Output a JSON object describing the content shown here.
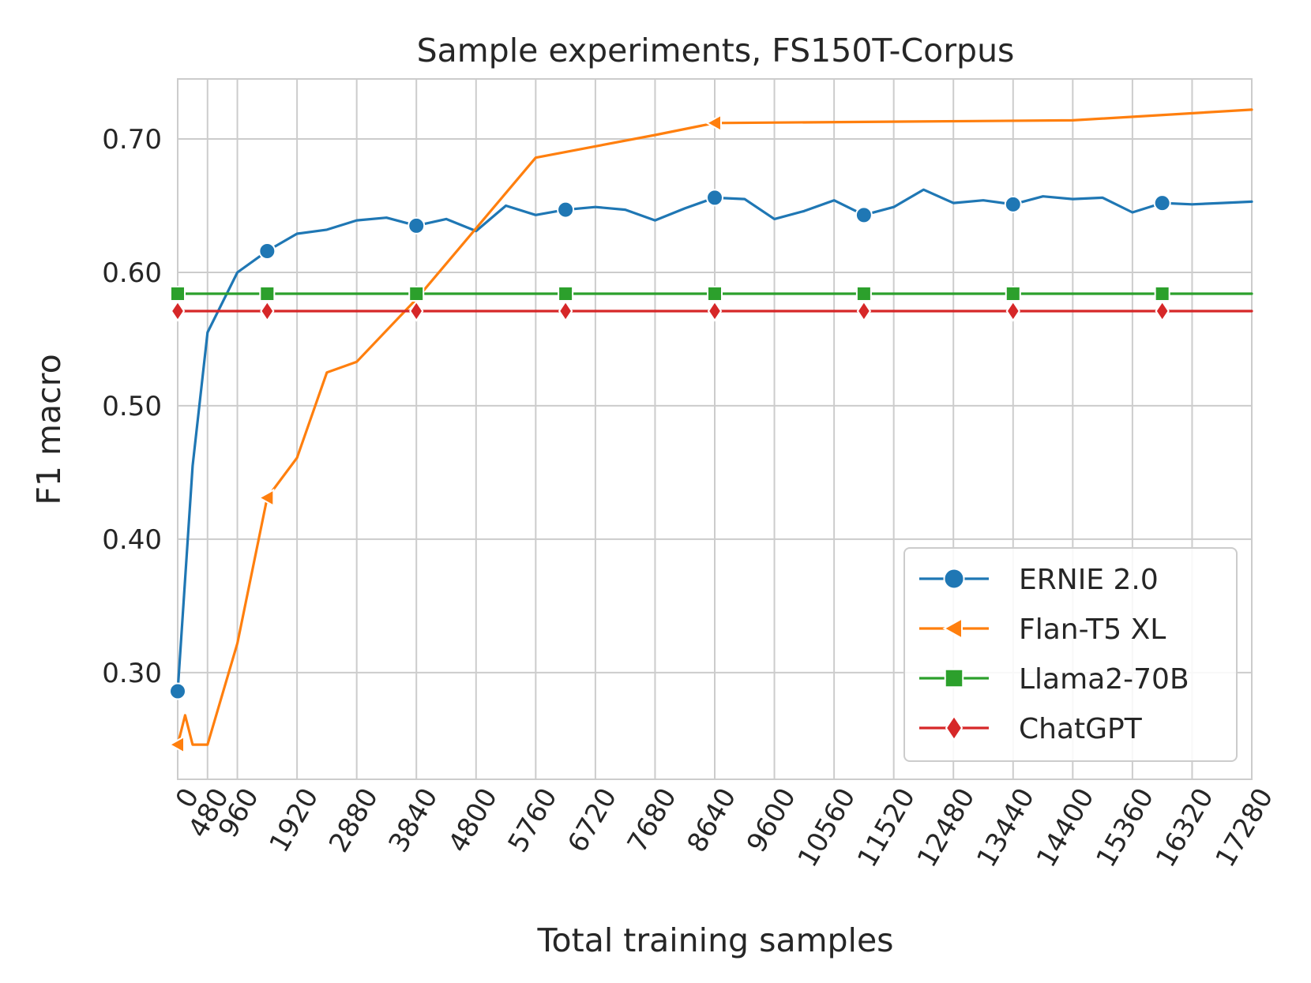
{
  "chart_data": {
    "type": "line",
    "title": "Sample experiments, FS150T-Corpus",
    "xlabel": "Total training samples",
    "ylabel": "F1 macro",
    "xlim": [
      0,
      17280
    ],
    "ylim": [
      0.22,
      0.745
    ],
    "xticks": [
      0,
      480,
      960,
      1920,
      2880,
      3840,
      4800,
      5760,
      6720,
      7680,
      8640,
      9600,
      10560,
      11520,
      12480,
      13440,
      14400,
      15360,
      16320,
      17280
    ],
    "yticks": [
      0.3,
      0.4,
      0.5,
      0.6,
      0.7
    ],
    "ytick_labels": [
      "0.30",
      "0.40",
      "0.50",
      "0.60",
      "0.70"
    ],
    "grid": true,
    "legend_position": "lower-right",
    "series": [
      {
        "name": "ERNIE 2.0",
        "color": "#1f77b4",
        "marker": "circle",
        "x": [
          0,
          240,
          480,
          960,
          1440,
          1920,
          2400,
          2880,
          3360,
          3840,
          4320,
          4800,
          5280,
          5760,
          6240,
          6720,
          7200,
          7680,
          8160,
          8640,
          9120,
          9600,
          10080,
          10560,
          11040,
          11520,
          12000,
          12480,
          12960,
          13440,
          13920,
          14400,
          14880,
          15360,
          15840,
          16320,
          16800,
          17280
        ],
        "values": [
          0.286,
          0.455,
          0.555,
          0.6,
          0.616,
          0.629,
          0.632,
          0.639,
          0.641,
          0.635,
          0.64,
          0.631,
          0.65,
          0.643,
          0.647,
          0.649,
          0.647,
          0.639,
          0.648,
          0.656,
          0.655,
          0.64,
          0.646,
          0.654,
          0.643,
          0.649,
          0.662,
          0.652,
          0.654,
          0.651,
          0.657,
          0.655,
          0.656,
          0.645,
          0.652,
          0.651,
          0.652,
          0.653
        ],
        "marker_x": [
          0,
          1440,
          3840,
          6240,
          8640,
          11040,
          13440,
          15840
        ]
      },
      {
        "name": "Flan-T5 XL",
        "color": "#ff7f0e",
        "marker": "triangle-left",
        "x": [
          0,
          120,
          240,
          480,
          960,
          1440,
          1920,
          2400,
          2880,
          3840,
          5760,
          7680,
          8640,
          14400,
          17280
        ],
        "values": [
          0.246,
          0.268,
          0.246,
          0.246,
          0.322,
          0.431,
          0.461,
          0.525,
          0.533,
          0.58,
          0.686,
          0.703,
          0.712,
          0.714,
          0.722
        ],
        "marker_x": [
          0,
          1440,
          8640
        ]
      },
      {
        "name": "Llama2-70B",
        "color": "#2ca02c",
        "marker": "square",
        "x": [
          0,
          17280
        ],
        "values": [
          0.584,
          0.584
        ],
        "marker_x": [
          0,
          1440,
          3840,
          6240,
          8640,
          11040,
          13440,
          15840
        ]
      },
      {
        "name": "ChatGPT",
        "color": "#d62728",
        "marker": "diamond",
        "x": [
          0,
          17280
        ],
        "values": [
          0.571,
          0.571
        ],
        "marker_x": [
          0,
          1440,
          3840,
          6240,
          8640,
          11040,
          13440,
          15840
        ]
      }
    ]
  }
}
